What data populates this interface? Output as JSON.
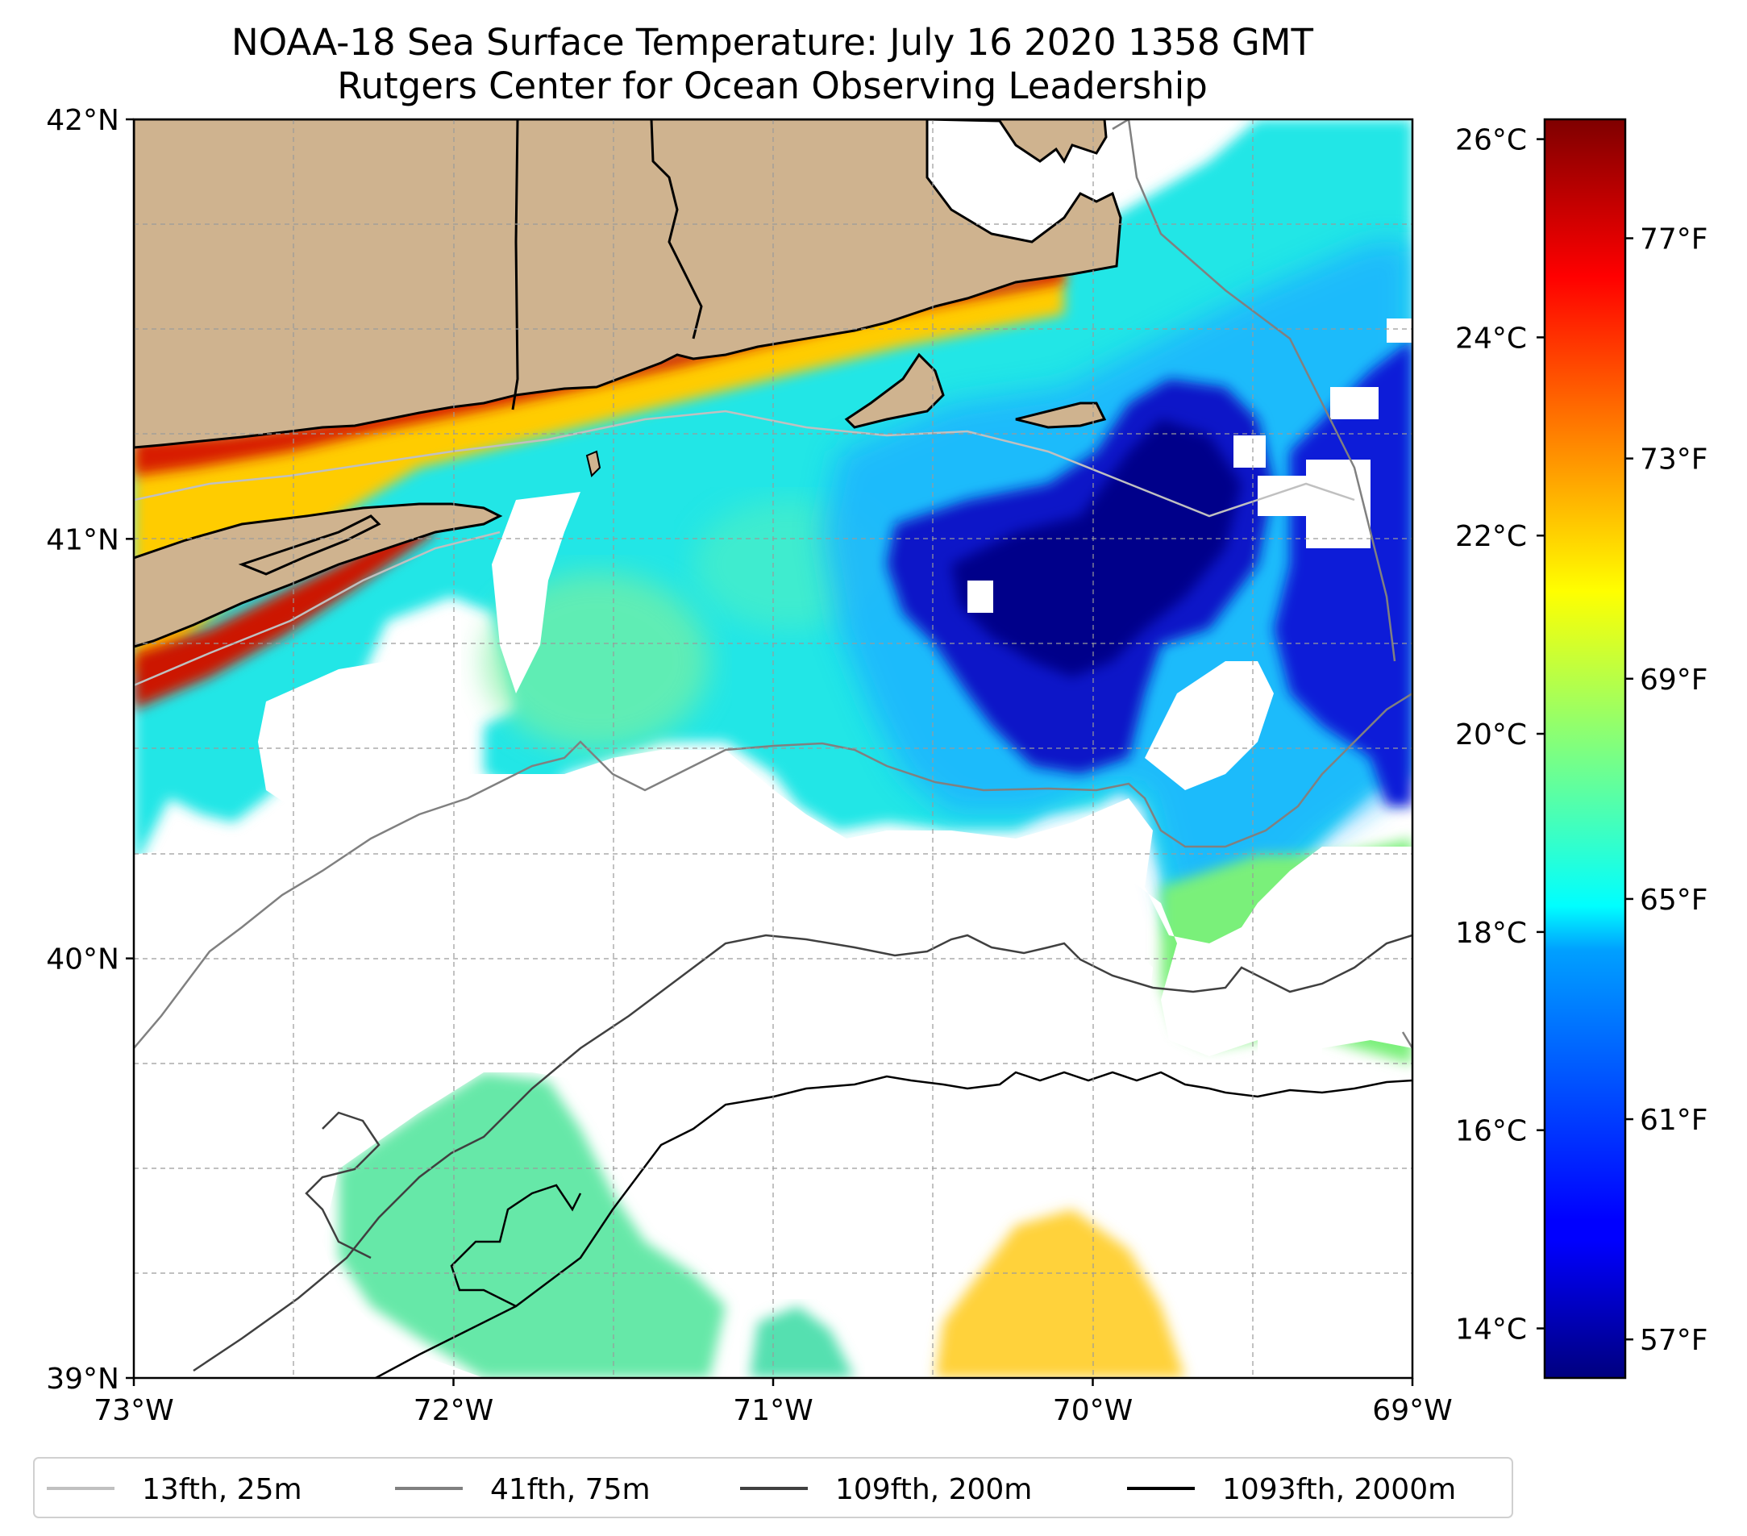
{
  "title_line1": "NOAA-18 Sea Surface Temperature: July 16 2020 1358 GMT",
  "title_line2": "Rutgers Center for Ocean Observing Leadership",
  "map": {
    "lon_range": [
      -73,
      -69
    ],
    "lat_range": [
      39,
      42
    ],
    "lon_ticks": [
      {
        "value": -73,
        "label": "73°W"
      },
      {
        "value": -72,
        "label": "72°W"
      },
      {
        "value": -71,
        "label": "71°W"
      },
      {
        "value": -70,
        "label": "70°W"
      },
      {
        "value": -69,
        "label": "69°W"
      }
    ],
    "lat_ticks": [
      {
        "value": 42,
        "label": "42°N"
      },
      {
        "value": 41,
        "label": "41°N"
      },
      {
        "value": 40,
        "label": "40°N"
      },
      {
        "value": 39,
        "label": "39°N"
      }
    ],
    "gridlines": true,
    "land_color": "#cfb38f",
    "cloud_mask_color": "#ffffff"
  },
  "colorbar": {
    "colormap": "jet",
    "range_c": [
      13.5,
      26.2
    ],
    "celsius_ticks": [
      {
        "value": 26,
        "label": "26°C"
      },
      {
        "value": 24,
        "label": "24°C"
      },
      {
        "value": 22,
        "label": "22°C"
      },
      {
        "value": 20,
        "label": "20°C"
      },
      {
        "value": 18,
        "label": "18°C"
      },
      {
        "value": 16,
        "label": "16°C"
      },
      {
        "value": 14,
        "label": "14°C"
      }
    ],
    "fahrenheit_ticks": [
      {
        "value": 77,
        "label": "77°F"
      },
      {
        "value": 73,
        "label": "73°F"
      },
      {
        "value": 69,
        "label": "69°F"
      },
      {
        "value": 65,
        "label": "65°F"
      },
      {
        "value": 61,
        "label": "61°F"
      },
      {
        "value": 57,
        "label": "57°F"
      }
    ]
  },
  "legend": {
    "placement": "bottom",
    "items": [
      {
        "label": "13fth, 25m",
        "color": "#c0c0c0"
      },
      {
        "label": "41fth, 75m",
        "color": "#808080"
      },
      {
        "label": "109fth, 200m",
        "color": "#404040"
      },
      {
        "label": "1093fth, 2000m",
        "color": "#000000"
      }
    ]
  }
}
